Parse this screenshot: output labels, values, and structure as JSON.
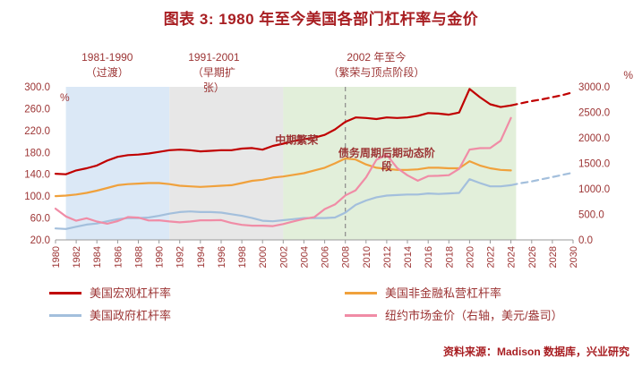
{
  "page": {
    "title": "图表 3: 1980 年至今美国各部门杠杆率与金价",
    "source": "资料来源：Madison 数据库，兴业研究"
  },
  "colors": {
    "title": "#A81E22",
    "text": "#9C3434",
    "macro_line": "#C00000",
    "private_line": "#F0A13C",
    "government_line": "#A3BFDC",
    "gold_line": "#F08CA6",
    "region_blue": "#DBE8F6",
    "region_gray": "#E7E7E7",
    "region_green": "#E2EFDA"
  },
  "chart_data": {
    "type": "line",
    "title": "1980 年至今美国各部门杠杆率与金价",
    "text_color": "#9C3434",
    "x_range": [
      1980,
      2030
    ],
    "x_ticks": [
      1980,
      1982,
      1984,
      1986,
      1988,
      1990,
      1992,
      1994,
      1996,
      1998,
      2000,
      2002,
      2004,
      2006,
      2008,
      2010,
      2012,
      2014,
      2016,
      2018,
      2020,
      2022,
      2024,
      2026,
      2028,
      2030
    ],
    "left_axis": {
      "unit": "%",
      "min": 20,
      "max": 300,
      "ticks": [
        300,
        260,
        220,
        180,
        140,
        100,
        60,
        20
      ]
    },
    "right_axis": {
      "unit": "%",
      "min": 0,
      "max": 3000,
      "ticks": [
        3000,
        2500,
        2000,
        1500,
        1000,
        500,
        0
      ]
    },
    "regions": [
      {
        "label_lines": [
          "1981-1990",
          "（过渡）"
        ],
        "start": 1981,
        "end": 1991,
        "label_year": 1985,
        "color": "#DBE8F6"
      },
      {
        "label_lines": [
          "1991-2001",
          "（早期扩",
          "张）"
        ],
        "start": 1991,
        "end": 2002,
        "label_year": 1995.3,
        "color": "#E7E7E7"
      },
      {
        "label_lines": [
          "2002 年至今",
          "（繁荣与顶点阶段）"
        ],
        "start": 2002,
        "end": 2024.5,
        "label_year": 2011,
        "color": "#E2EFDA"
      }
    ],
    "vline_year": 2008,
    "annotations": [
      {
        "lines": [
          "中期繁荣"
        ],
        "year": 2003.3,
        "value": 196
      },
      {
        "lines": [
          "债务周期后期动态阶",
          "段"
        ],
        "year": 2012,
        "value": 172
      }
    ],
    "series": [
      {
        "id": "macro",
        "name": "美国宏观杠杆率",
        "color": "#C00000",
        "axis": "left",
        "dash": false,
        "x0": 1980,
        "values": [
          141,
          140,
          147,
          151,
          156,
          165,
          172,
          175,
          176,
          178,
          181,
          184,
          185,
          184,
          182,
          183,
          184,
          184,
          187,
          188,
          185,
          192,
          196,
          201,
          204,
          207,
          212,
          222,
          236,
          244,
          243,
          241,
          244,
          243,
          244,
          247,
          252,
          251,
          249,
          253,
          296,
          281,
          268,
          263,
          266
        ]
      },
      {
        "id": "macro-forecast",
        "name": "美国宏观杠杆率（预测）",
        "color": "#C00000",
        "axis": "left",
        "dash": true,
        "x0": 2024,
        "values": [
          266,
          270,
          274,
          277,
          281,
          285,
          290
        ]
      },
      {
        "id": "private",
        "name": "美国非金融私营杠杆率",
        "color": "#F0A13C",
        "axis": "left",
        "dash": false,
        "x0": 1980,
        "values": [
          100,
          101,
          103,
          106,
          110,
          115,
          120,
          122,
          123,
          124,
          124,
          122,
          119,
          118,
          117,
          118,
          119,
          120,
          124,
          128,
          130,
          134,
          136,
          139,
          142,
          147,
          152,
          160,
          169,
          167,
          158,
          152,
          150,
          148,
          148,
          149,
          152,
          152,
          151,
          151,
          164,
          156,
          151,
          148,
          147
        ]
      },
      {
        "id": "government",
        "name": "美国政府杠杆率",
        "color": "#A3BFDC",
        "axis": "left",
        "dash": false,
        "x0": 1980,
        "values": [
          41,
          40,
          44,
          48,
          50,
          54,
          58,
          60,
          60,
          61,
          64,
          68,
          71,
          72,
          71,
          71,
          70,
          67,
          64,
          60,
          55,
          54,
          56,
          58,
          60,
          60,
          60,
          61,
          70,
          84,
          92,
          98,
          101,
          102,
          103,
          103,
          105,
          104,
          105,
          106,
          131,
          124,
          118,
          118,
          120
        ]
      },
      {
        "id": "government-forecast",
        "name": "美国政府杠杆率（预测）",
        "color": "#A3BFDC",
        "axis": "left",
        "dash": true,
        "x0": 2024,
        "values": [
          120,
          124,
          127,
          131,
          135,
          139,
          143
        ]
      },
      {
        "id": "gold",
        "name": "纽约市场金价（右轴，美元/盎司）",
        "color": "#F08CA6",
        "axis": "right",
        "dash": false,
        "x0": 1980,
        "values": [
          612,
          460,
          376,
          424,
          360,
          317,
          368,
          447,
          437,
          381,
          384,
          362,
          344,
          360,
          384,
          384,
          388,
          331,
          294,
          279,
          279,
          271,
          310,
          363,
          410,
          445,
          603,
          695,
          872,
          972,
          1225,
          1570,
          1669,
          1411,
          1266,
          1160,
          1251,
          1257,
          1268,
          1393,
          1770,
          1799,
          1800,
          1943,
          2390
        ]
      }
    ],
    "legend": [
      {
        "label": "美国宏观杠杆率",
        "color": "#C00000"
      },
      {
        "label": "美国非金融私营杠杆率",
        "color": "#F0A13C"
      },
      {
        "label": "美国政府杠杆率",
        "color": "#A3BFDC"
      },
      {
        "label": "纽约市场金价（右轴，美元/盎司）",
        "color": "#F08CA6"
      }
    ]
  }
}
